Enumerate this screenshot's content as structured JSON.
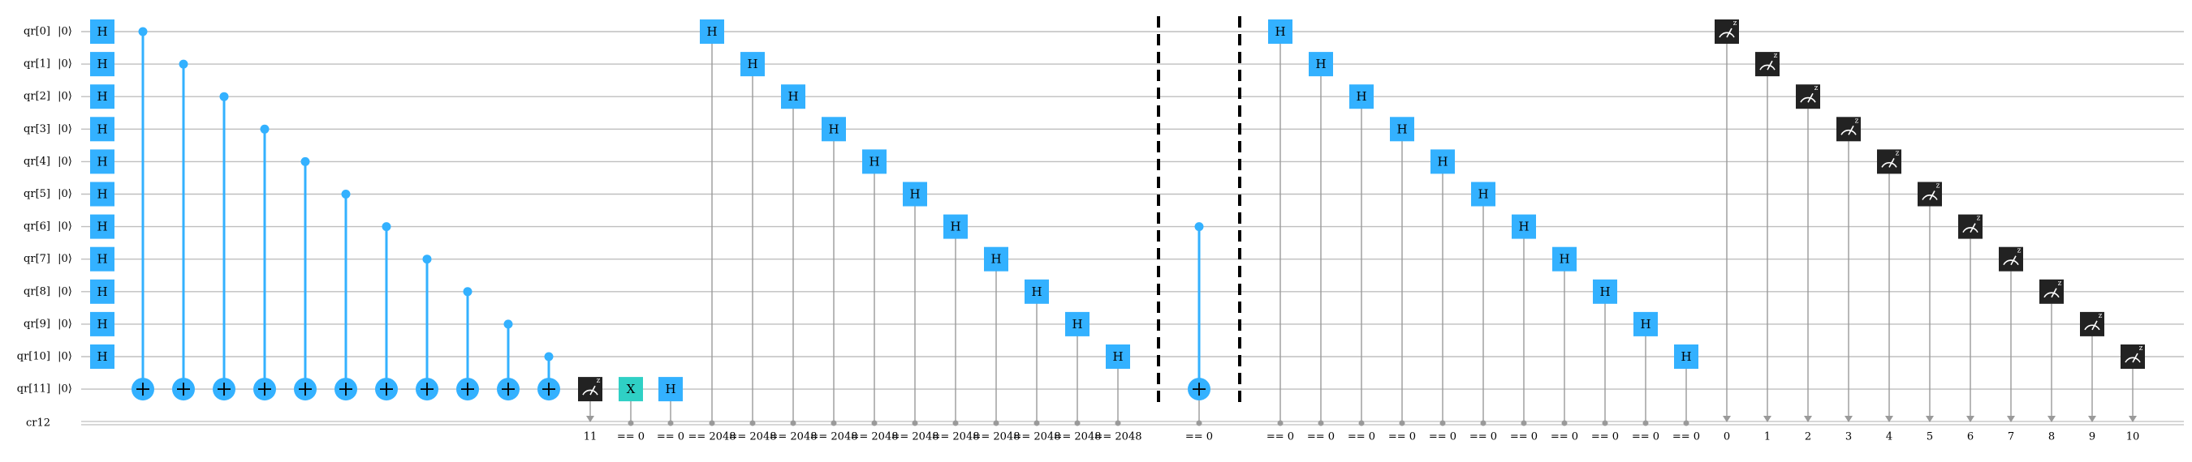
{
  "circuit": {
    "qubit_labels": [
      "qr[0]",
      "qr[1]",
      "qr[2]",
      "qr[3]",
      "qr[4]",
      "qr[5]",
      "qr[6]",
      "qr[7]",
      "qr[8]",
      "qr[9]",
      "qr[10]",
      "qr[11]"
    ],
    "init_state": "|0⟩",
    "classical_label": "cr12",
    "gate_h": "H",
    "gate_x": "X",
    "cond_zero": "== 0",
    "cond_2048": "== 2048",
    "measure_bits": [
      "11",
      "0",
      "1",
      "2",
      "3",
      "4",
      "5",
      "6",
      "7",
      "8",
      "9",
      "10"
    ],
    "colors": {
      "h_gate": "#33b1ff",
      "x_gate": "#2fd0c5",
      "control": "#33b1ff",
      "measure": "#222222",
      "wire": "#bfbfbf",
      "barrier": "#000000"
    }
  }
}
